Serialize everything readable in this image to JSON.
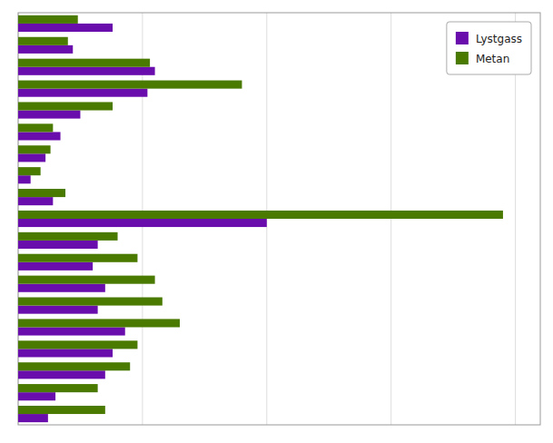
{
  "chart_data": {
    "type": "bar",
    "orientation": "horizontal",
    "categories": [
      null,
      null,
      null,
      null,
      null,
      null,
      null,
      null,
      null,
      null,
      null,
      null,
      null,
      null,
      null,
      null,
      null,
      null,
      null
    ],
    "series": [
      {
        "name": "Lystgass",
        "color": "#6a0dad",
        "values": [
          3.8,
          2.2,
          5.5,
          5.2,
          2.5,
          1.7,
          1.1,
          0.5,
          1.4,
          10.0,
          3.2,
          3.0,
          3.5,
          3.2,
          4.3,
          3.8,
          3.5,
          1.5,
          1.2
        ]
      },
      {
        "name": "Metan",
        "color": "#4a7a00",
        "values": [
          2.4,
          2.0,
          5.3,
          9.0,
          3.8,
          1.4,
          1.3,
          0.9,
          1.9,
          19.5,
          4.0,
          4.8,
          5.5,
          5.8,
          6.5,
          4.8,
          4.5,
          3.2,
          3.5
        ]
      }
    ],
    "xlim": [
      0,
      21
    ],
    "xticks": [
      0,
      5,
      10,
      15,
      20
    ],
    "grid": true,
    "legend": "upper right",
    "tick_labels": false
  }
}
